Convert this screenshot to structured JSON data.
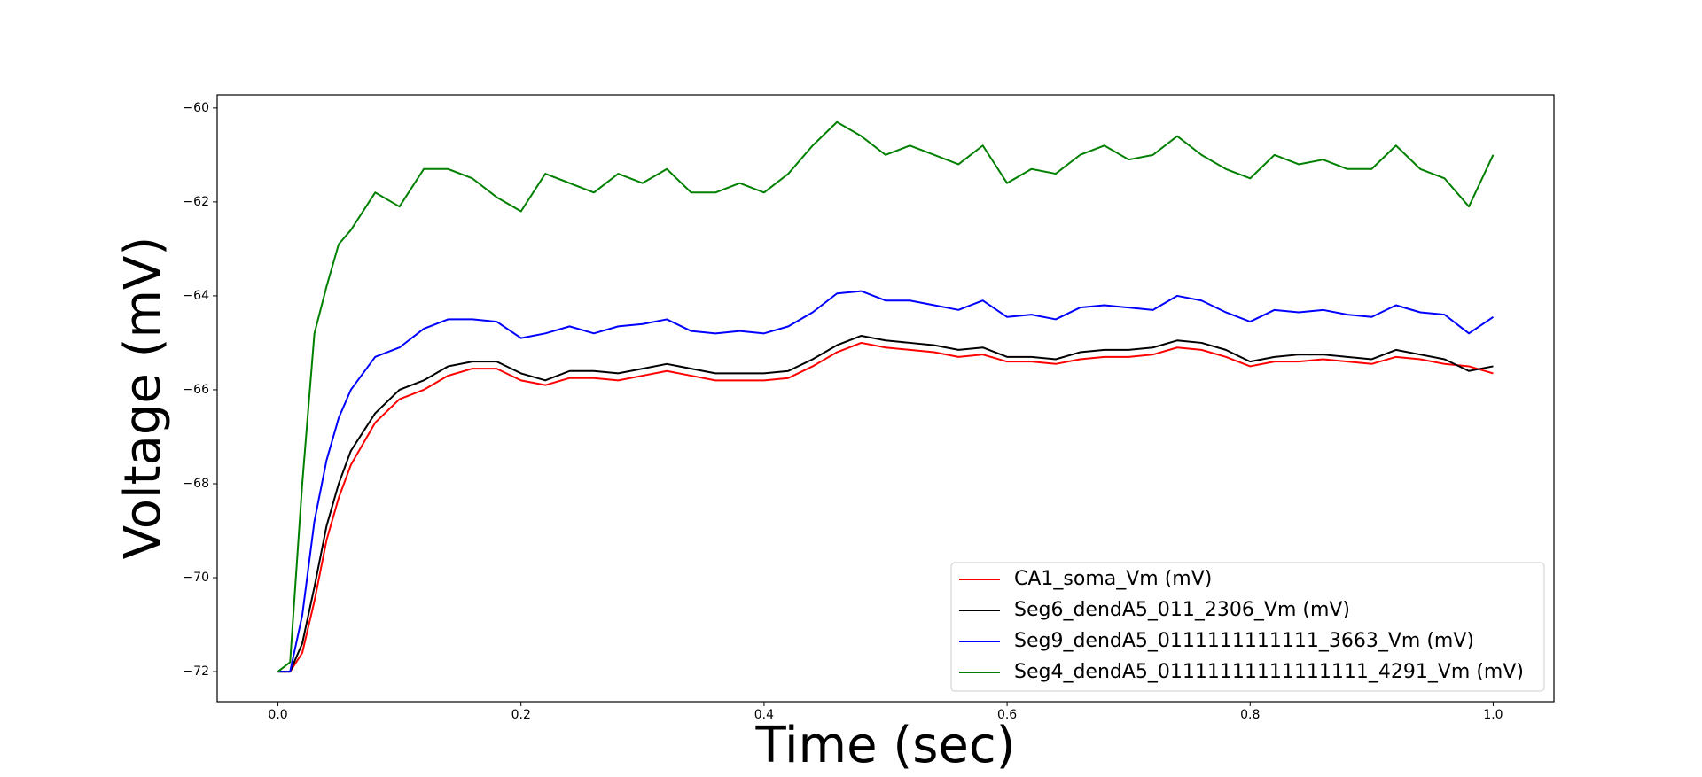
{
  "chart_data": {
    "type": "line",
    "xlabel": "Time (sec)",
    "ylabel": "Voltage (mV)",
    "x": [
      0,
      0.01,
      0.02,
      0.03,
      0.04,
      0.05,
      0.06,
      0.08,
      0.1,
      0.12,
      0.14,
      0.16,
      0.18,
      0.2,
      0.22,
      0.24,
      0.26,
      0.28,
      0.3,
      0.32,
      0.34,
      0.36,
      0.38,
      0.4,
      0.42,
      0.44,
      0.46,
      0.48,
      0.5,
      0.52,
      0.54,
      0.56,
      0.58,
      0.6,
      0.62,
      0.64,
      0.66,
      0.68,
      0.7,
      0.72,
      0.74,
      0.76,
      0.78,
      0.8,
      0.82,
      0.84,
      0.86,
      0.88,
      0.9,
      0.92,
      0.94,
      0.96,
      0.98,
      1.0
    ],
    "series": [
      {
        "name": "CA1_soma_Vm (mV)",
        "color": "#ff0000",
        "values": [
          -72,
          -72,
          -71.6,
          -70.5,
          -69.2,
          -68.3,
          -67.6,
          -66.7,
          -66.2,
          -66.0,
          -65.7,
          -65.55,
          -65.55,
          -65.8,
          -65.9,
          -65.75,
          -65.75,
          -65.8,
          -65.7,
          -65.6,
          -65.7,
          -65.8,
          -65.8,
          -65.8,
          -65.75,
          -65.5,
          -65.2,
          -65.0,
          -65.1,
          -65.15,
          -65.2,
          -65.3,
          -65.25,
          -65.4,
          -65.4,
          -65.45,
          -65.35,
          -65.3,
          -65.3,
          -65.25,
          -65.1,
          -65.15,
          -65.3,
          -65.5,
          -65.4,
          -65.4,
          -65.35,
          -65.4,
          -65.45,
          -65.3,
          -65.35,
          -65.45,
          -65.5,
          -65.65
        ]
      },
      {
        "name": "Seg6_dendA5_011_2306_Vm (mV)",
        "color": "#000000",
        "values": [
          -72,
          -72,
          -71.4,
          -70.2,
          -68.9,
          -68.0,
          -67.3,
          -66.5,
          -66.0,
          -65.8,
          -65.5,
          -65.4,
          -65.4,
          -65.65,
          -65.8,
          -65.6,
          -65.6,
          -65.65,
          -65.55,
          -65.45,
          -65.55,
          -65.65,
          -65.65,
          -65.65,
          -65.6,
          -65.35,
          -65.05,
          -64.85,
          -64.95,
          -65.0,
          -65.05,
          -65.15,
          -65.1,
          -65.3,
          -65.3,
          -65.35,
          -65.2,
          -65.15,
          -65.15,
          -65.1,
          -64.95,
          -65.0,
          -65.15,
          -65.4,
          -65.3,
          -65.25,
          -65.25,
          -65.3,
          -65.35,
          -65.15,
          -65.25,
          -65.35,
          -65.6,
          -65.5
        ]
      },
      {
        "name": "Seg9_dendA5_0111111111111_3663_Vm (mV)",
        "color": "#0000ff",
        "values": [
          -72,
          -72,
          -70.8,
          -68.8,
          -67.5,
          -66.6,
          -66.0,
          -65.3,
          -65.1,
          -64.7,
          -64.5,
          -64.5,
          -64.55,
          -64.9,
          -64.8,
          -64.65,
          -64.8,
          -64.65,
          -64.6,
          -64.5,
          -64.75,
          -64.8,
          -64.75,
          -64.8,
          -64.65,
          -64.35,
          -63.95,
          -63.9,
          -64.1,
          -64.1,
          -64.2,
          -64.3,
          -64.1,
          -64.45,
          -64.4,
          -64.5,
          -64.25,
          -64.2,
          -64.25,
          -64.3,
          -64.0,
          -64.1,
          -64.35,
          -64.55,
          -64.3,
          -64.35,
          -64.3,
          -64.4,
          -64.45,
          -64.2,
          -64.35,
          -64.4,
          -64.8,
          -64.45
        ]
      },
      {
        "name": "Seg4_dendA5_01111111111111111_4291_Vm (mV)",
        "color": "#008000",
        "values": [
          -72,
          -71.8,
          -68,
          -64.8,
          -63.8,
          -62.9,
          -62.6,
          -61.8,
          -62.1,
          -61.3,
          -61.3,
          -61.5,
          -61.9,
          -62.2,
          -61.4,
          -61.6,
          -61.8,
          -61.4,
          -61.6,
          -61.3,
          -61.8,
          -61.8,
          -61.6,
          -61.8,
          -61.4,
          -60.8,
          -60.3,
          -60.6,
          -61.0,
          -60.8,
          -61.0,
          -61.2,
          -60.8,
          -61.6,
          -61.3,
          -61.4,
          -61.0,
          -60.8,
          -61.1,
          -61.0,
          -60.6,
          -61.0,
          -61.3,
          -61.5,
          -61.0,
          -61.2,
          -61.1,
          -61.3,
          -61.3,
          -60.8,
          -61.3,
          -61.5,
          -62.1,
          -61.0
        ]
      }
    ],
    "xlim": [
      -0.05,
      1.05
    ],
    "ylim": [
      -72.64,
      -59.72
    ],
    "xticks": [
      {
        "value": 0,
        "label": "0.0"
      },
      0.2,
      0.4,
      0.6,
      0.8,
      {
        "value": 1,
        "label": "1.0"
      }
    ],
    "yticks": [
      {
        "value": -72,
        "label": "−72"
      },
      {
        "value": -70,
        "label": "−70"
      },
      {
        "value": -68,
        "label": "−68"
      },
      {
        "value": -66,
        "label": "−66"
      },
      {
        "value": -64,
        "label": "−64"
      },
      {
        "value": -62,
        "label": "−62"
      },
      {
        "value": -60,
        "label": "−60"
      }
    ],
    "grid": false,
    "legend": "lower right"
  }
}
